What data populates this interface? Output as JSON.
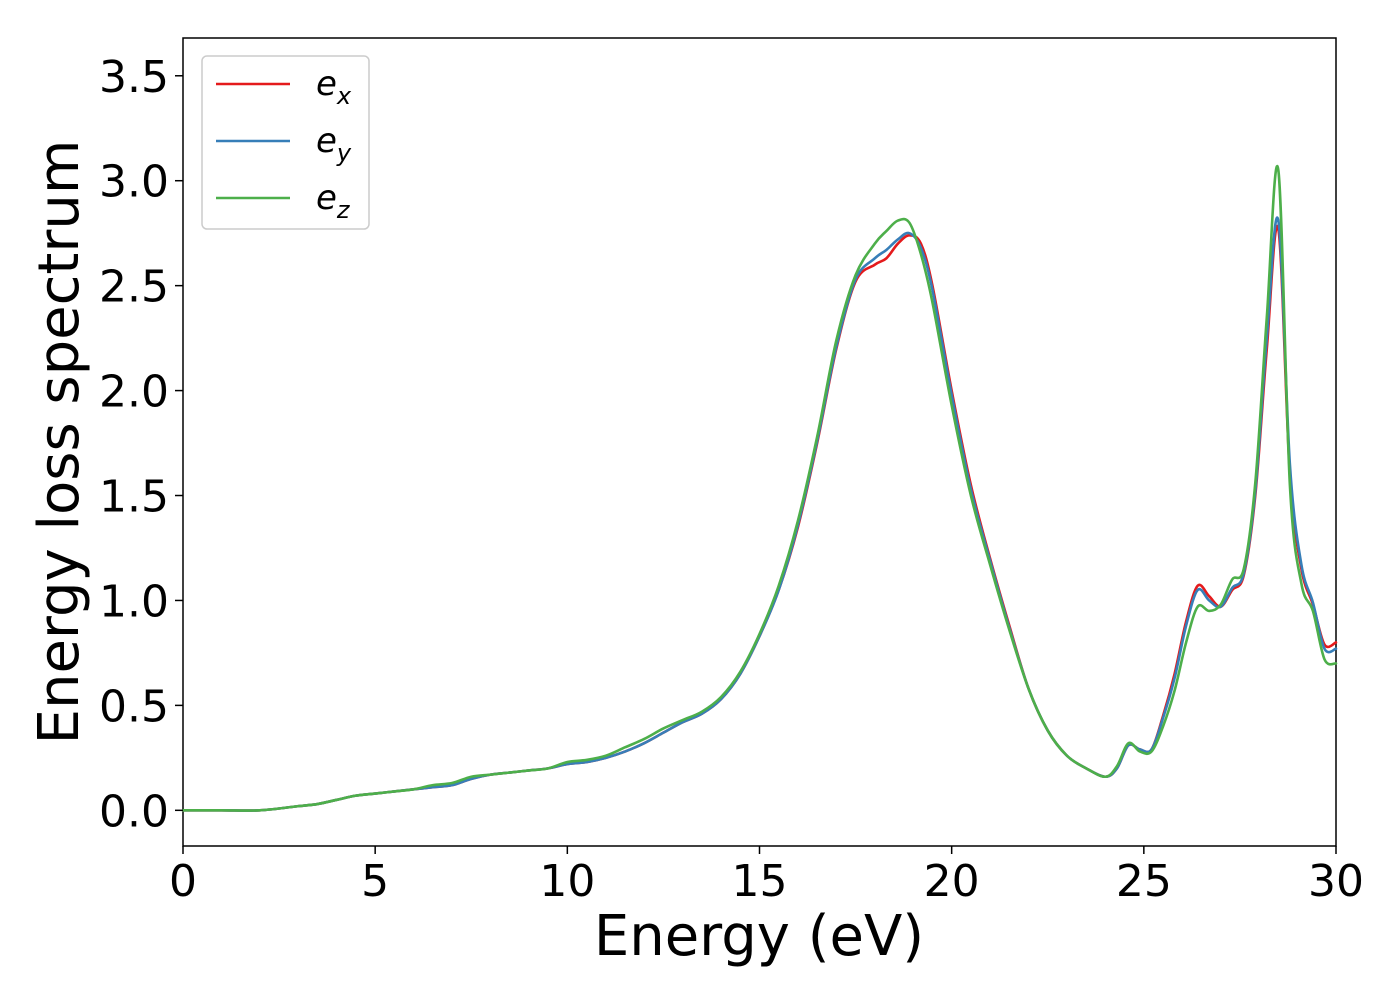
{
  "chart_data": {
    "type": "line",
    "xlabel": "Energy (eV)",
    "ylabel": "Energy loss spectrum",
    "xlim": [
      0,
      30
    ],
    "ylim": [
      -0.17,
      3.68
    ],
    "xticks": [
      0,
      5,
      10,
      15,
      20,
      25,
      30
    ],
    "yticks": [
      0.0,
      0.5,
      1.0,
      1.5,
      2.0,
      2.5,
      3.0,
      3.5
    ],
    "xtick_labels": [
      "0",
      "5",
      "10",
      "15",
      "20",
      "25",
      "30"
    ],
    "ytick_labels": [
      "0.0",
      "0.5",
      "1.0",
      "1.5",
      "2.0",
      "2.5",
      "3.0",
      "3.5"
    ],
    "grid": false,
    "legend_position": "top-left",
    "series": [
      {
        "name": "e",
        "sub": "x",
        "color": "#e41a1c",
        "x": [
          0,
          1,
          2,
          3,
          3.5,
          4,
          4.5,
          5,
          5.5,
          6,
          6.5,
          7,
          7.5,
          8,
          8.5,
          9,
          9.5,
          10,
          10.5,
          11,
          11.5,
          12,
          12.5,
          13,
          13.5,
          14,
          14.5,
          15,
          15.5,
          16,
          16.5,
          17,
          17.5,
          18,
          18.3,
          18.6,
          18.9,
          19.2,
          19.5,
          20,
          20.5,
          21,
          21.5,
          22,
          22.5,
          23,
          23.5,
          24,
          24.3,
          24.6,
          24.9,
          25.2,
          25.5,
          25.8,
          26.1,
          26.4,
          26.7,
          27,
          27.3,
          27.6,
          27.9,
          28.2,
          28.5,
          28.8,
          29.1,
          29.4,
          29.7,
          30
        ],
        "y": [
          0.0,
          0.0,
          0.0,
          0.02,
          0.03,
          0.05,
          0.07,
          0.08,
          0.09,
          0.1,
          0.11,
          0.12,
          0.15,
          0.17,
          0.18,
          0.19,
          0.2,
          0.22,
          0.23,
          0.25,
          0.28,
          0.32,
          0.37,
          0.42,
          0.46,
          0.53,
          0.65,
          0.83,
          1.05,
          1.35,
          1.75,
          2.2,
          2.52,
          2.6,
          2.63,
          2.7,
          2.74,
          2.7,
          2.5,
          2.0,
          1.55,
          1.2,
          0.88,
          0.58,
          0.38,
          0.26,
          0.2,
          0.16,
          0.2,
          0.31,
          0.29,
          0.29,
          0.45,
          0.65,
          0.9,
          1.07,
          1.02,
          0.97,
          1.05,
          1.12,
          1.5,
          2.2,
          2.77,
          1.6,
          1.15,
          0.98,
          0.79,
          0.8
        ]
      },
      {
        "name": "e",
        "sub": "y",
        "color": "#377eb8",
        "x": [
          0,
          1,
          2,
          3,
          3.5,
          4,
          4.5,
          5,
          5.5,
          6,
          6.5,
          7,
          7.5,
          8,
          8.5,
          9,
          9.5,
          10,
          10.5,
          11,
          11.5,
          12,
          12.5,
          13,
          13.5,
          14,
          14.5,
          15,
          15.5,
          16,
          16.5,
          17,
          17.5,
          18,
          18.3,
          18.6,
          18.9,
          19.2,
          19.5,
          20,
          20.5,
          21,
          21.5,
          22,
          22.5,
          23,
          23.5,
          24,
          24.3,
          24.6,
          24.9,
          25.2,
          25.5,
          25.8,
          26.1,
          26.4,
          26.7,
          27,
          27.3,
          27.6,
          27.9,
          28.2,
          28.5,
          28.8,
          29.1,
          29.4,
          29.7,
          30
        ],
        "y": [
          0.0,
          0.0,
          0.0,
          0.02,
          0.03,
          0.05,
          0.07,
          0.08,
          0.09,
          0.1,
          0.11,
          0.12,
          0.15,
          0.17,
          0.18,
          0.19,
          0.2,
          0.22,
          0.23,
          0.25,
          0.28,
          0.32,
          0.37,
          0.42,
          0.46,
          0.53,
          0.65,
          0.83,
          1.05,
          1.36,
          1.76,
          2.21,
          2.53,
          2.63,
          2.67,
          2.72,
          2.75,
          2.68,
          2.48,
          1.98,
          1.53,
          1.19,
          0.87,
          0.58,
          0.38,
          0.26,
          0.2,
          0.16,
          0.2,
          0.31,
          0.29,
          0.29,
          0.44,
          0.63,
          0.88,
          1.05,
          1.0,
          0.97,
          1.06,
          1.13,
          1.52,
          2.25,
          2.81,
          1.65,
          1.17,
          0.99,
          0.77,
          0.77
        ]
      },
      {
        "name": "e",
        "sub": "z",
        "color": "#4daf4a",
        "x": [
          0,
          1,
          2,
          3,
          3.5,
          4,
          4.5,
          5,
          5.5,
          6,
          6.5,
          7,
          7.5,
          8,
          8.5,
          9,
          9.5,
          10,
          10.5,
          11,
          11.5,
          12,
          12.5,
          13,
          13.5,
          14,
          14.5,
          15,
          15.5,
          16,
          16.5,
          17,
          17.5,
          18,
          18.3,
          18.6,
          18.9,
          19.2,
          19.5,
          20,
          20.5,
          21,
          21.5,
          22,
          22.5,
          23,
          23.5,
          24,
          24.3,
          24.6,
          24.9,
          25.2,
          25.5,
          25.8,
          26.1,
          26.4,
          26.7,
          27,
          27.3,
          27.6,
          27.9,
          28.2,
          28.5,
          28.8,
          29.1,
          29.4,
          29.7,
          30
        ],
        "y": [
          0.0,
          0.0,
          0.0,
          0.02,
          0.03,
          0.05,
          0.07,
          0.08,
          0.09,
          0.1,
          0.12,
          0.13,
          0.16,
          0.17,
          0.18,
          0.19,
          0.2,
          0.23,
          0.24,
          0.26,
          0.3,
          0.34,
          0.39,
          0.43,
          0.47,
          0.54,
          0.66,
          0.84,
          1.07,
          1.38,
          1.78,
          2.24,
          2.55,
          2.7,
          2.76,
          2.81,
          2.8,
          2.65,
          2.42,
          1.93,
          1.5,
          1.17,
          0.86,
          0.58,
          0.38,
          0.26,
          0.2,
          0.16,
          0.21,
          0.32,
          0.28,
          0.28,
          0.4,
          0.57,
          0.8,
          0.97,
          0.95,
          0.98,
          1.1,
          1.15,
          1.56,
          2.35,
          3.05,
          1.55,
          1.08,
          0.95,
          0.72,
          0.7
        ]
      }
    ]
  }
}
